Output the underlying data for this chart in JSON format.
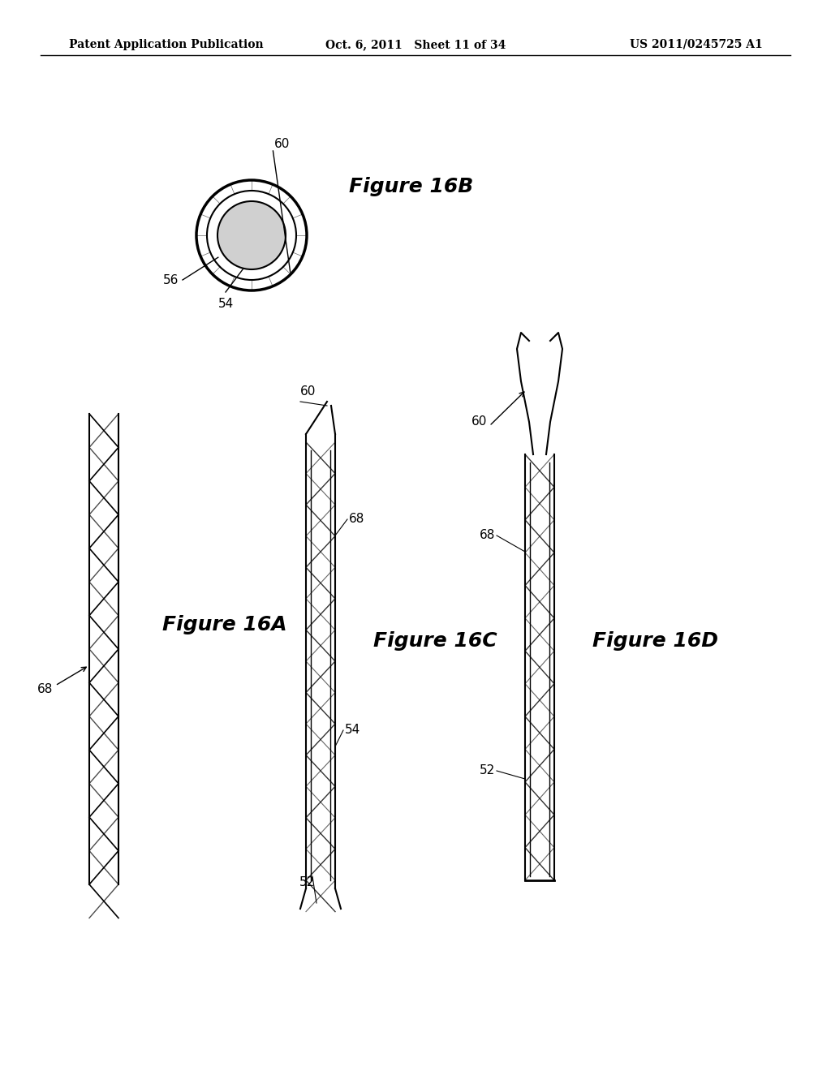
{
  "bg_color": "#ffffff",
  "text_color": "#000000",
  "header_left": "Patent Application Publication",
  "header_center": "Oct. 6, 2011   Sheet 11 of 34",
  "header_right": "US 2011/0245725 A1",
  "fig16B_label": "Figure 16B",
  "fig16A_label": "Figure 16A",
  "fig16C_label": "Figure 16C",
  "fig16D_label": "Figure 16D",
  "label_60_top": "60",
  "label_56": "56",
  "label_54_top": "54",
  "label_68_16A": "68",
  "label_68_16C": "68",
  "label_60_16C": "60",
  "label_54_16C": "54",
  "label_52_16C": "52",
  "label_60_16D": "60",
  "label_68_16D": "68",
  "label_52_16D": "52"
}
